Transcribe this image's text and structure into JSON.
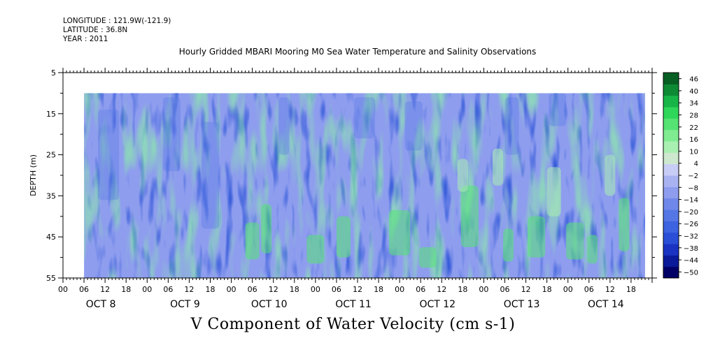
{
  "header": {
    "longitude": "LONGITUDE : 121.9W(-121.9)",
    "latitude": "LATITUDE : 36.8N",
    "year": "YEAR : 2011"
  },
  "chart_data": {
    "type": "heatmap",
    "title": "Hourly Gridded MBARI Mooring M0 Sea Water Temperature and Salinity Observations",
    "variable_label": "V Component of Water Velocity (cm s-1)",
    "ylabel": "DEPTH (m)",
    "ylim": [
      5,
      55
    ],
    "y_reversed": true,
    "y_ticks": [
      5,
      15,
      25,
      35,
      45,
      55
    ],
    "x_hour_ticks": [
      "00",
      "06",
      "12",
      "18",
      "00",
      "06",
      "12",
      "18",
      "00",
      "06",
      "12",
      "18",
      "00",
      "06",
      "12",
      "18",
      "00",
      "06",
      "12",
      "18",
      "00",
      "06",
      "12",
      "18",
      "00",
      "06",
      "12",
      "18"
    ],
    "x_day_labels": [
      "OCT  8",
      "OCT  9",
      "OCT 10",
      "OCT 11",
      "OCT 12",
      "OCT 13",
      "OCT 14"
    ],
    "x_range_hours_from_oct8_00": [
      0,
      168
    ],
    "data_extent": {
      "start": "OCT 8 06",
      "end": "OCT 14 ~22",
      "depth_top_m": 10,
      "depth_bottom_m": 55
    },
    "colorbar": {
      "levels": [
        -50,
        -44,
        -38,
        -32,
        -26,
        -20,
        -14,
        -8,
        -2,
        4,
        10,
        16,
        22,
        28,
        34,
        40,
        46
      ],
      "colors_low_to_high": [
        "#000066",
        "#0a1a99",
        "#1a33c2",
        "#2a4fd6",
        "#3d63e0",
        "#5577e6",
        "#7088ea",
        "#8e9dee",
        "#aab3f2",
        "#c8cdf6",
        "#cde8cf",
        "#a9efb2",
        "#80ec92",
        "#55e374",
        "#2ed65a",
        "#17b547",
        "#0e8a35",
        "#075f23"
      ]
    },
    "description_regions": [
      {
        "days": "OCT 8-10",
        "depth": "10-45",
        "value_range": [
          -30,
          -5
        ]
      },
      {
        "days": "OCT 10-14",
        "depth": "35-55",
        "value_range": [
          5,
          25
        ]
      },
      {
        "days": "OCT 11-14",
        "depth": "10-30",
        "value_range": [
          -25,
          -5
        ]
      }
    ]
  }
}
